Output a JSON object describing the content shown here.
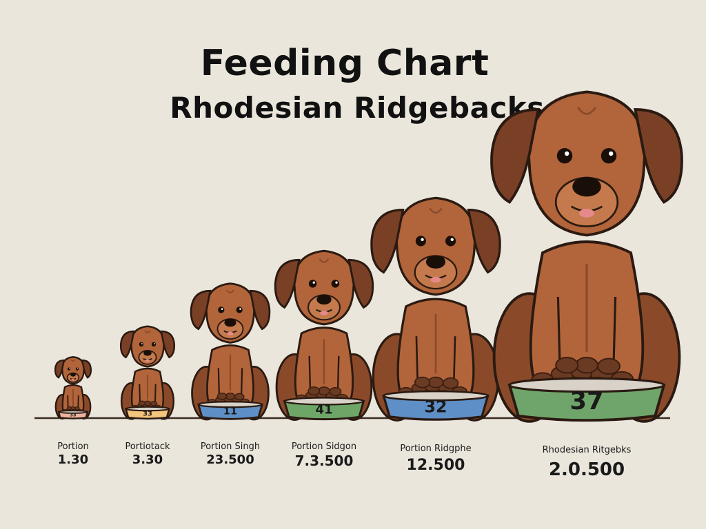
{
  "title": {
    "line1": "Feeding Chart",
    "line2": "Rhodesian Ridgebacks"
  },
  "dogs": [
    {
      "bowl_number": "33",
      "label": "Portion",
      "portion": "1.30",
      "bowl_color": "#eeb3a0"
    },
    {
      "bowl_number": "33",
      "label": "Portiotack",
      "portion": "3.30",
      "bowl_color": "#f2c47c"
    },
    {
      "bowl_number": "11",
      "label": "Portion Singh",
      "portion": "23.500",
      "bowl_color": "#5e8fc6"
    },
    {
      "bowl_number": "41",
      "label": "Portion Sidgon",
      "portion": "7.3.500",
      "bowl_color": "#6ea668"
    },
    {
      "bowl_number": "32",
      "label": "Portion Ridgphe",
      "portion": "12.500",
      "bowl_color": "#5e8fc6"
    },
    {
      "bowl_number": "37",
      "label": "Rhodesian Ritgebks",
      "portion": "2.0.500",
      "bowl_color": "#6fa56a"
    }
  ],
  "colors": {
    "background": "#ebe6dc",
    "fur": "#b2643a",
    "fur_dark": "#8a4a2a",
    "ear": "#7a4026",
    "kibble": "#6a3a22",
    "outline": "#2a1a12",
    "ground": "#3a2a22"
  }
}
